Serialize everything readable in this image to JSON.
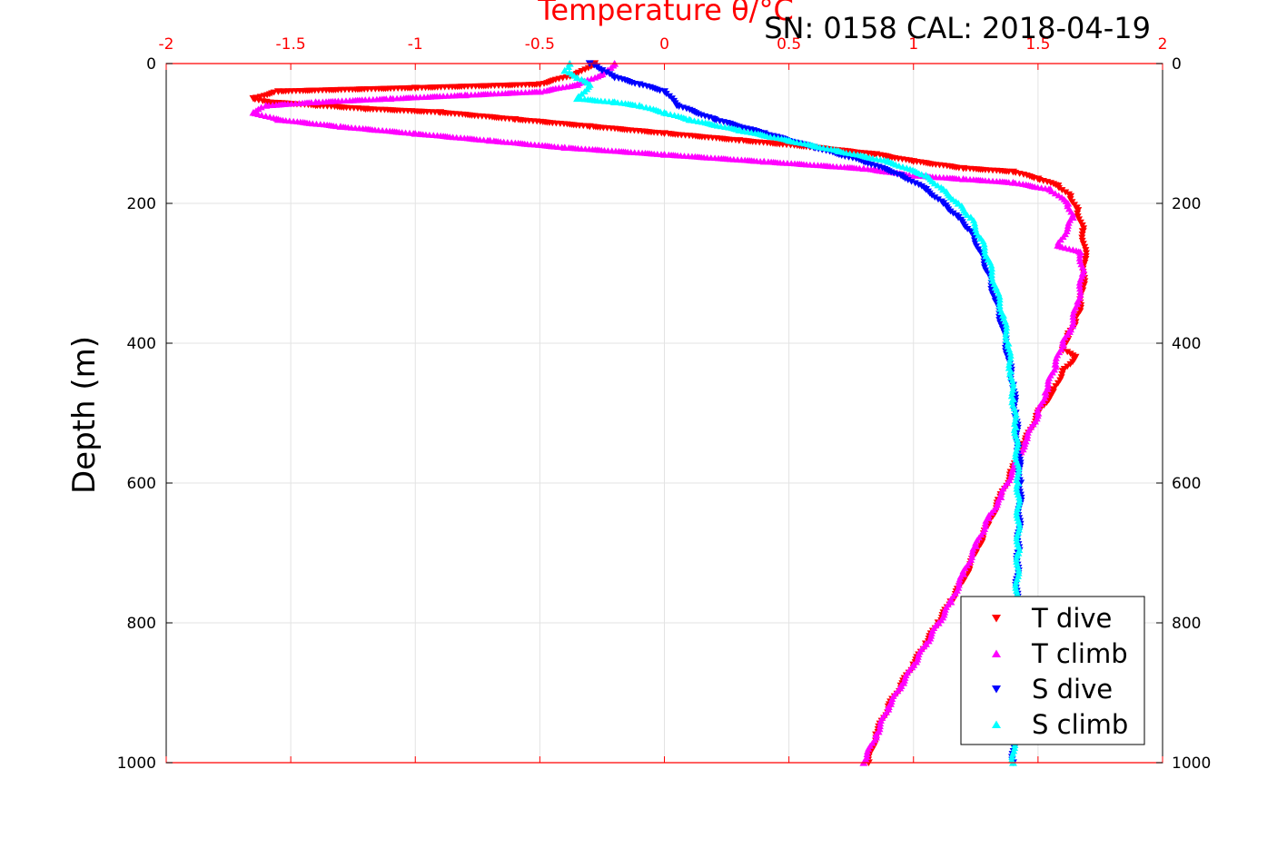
{
  "chart_data": {
    "type": "scatter",
    "title": "Temperature θ/°C",
    "subtitle": "SN: 0158  CAL: 2018-04-19",
    "xlabel": "Temperature θ/°C",
    "ylabel": "Depth (m)",
    "xlim": [
      -2,
      2
    ],
    "ylim": [
      0,
      1000
    ],
    "y_reversed": true,
    "x_ticks": [
      "-2",
      "-1.5",
      "-1",
      "-0.5",
      "0",
      "0.5",
      "1",
      "1.5",
      "2"
    ],
    "y_ticks": [
      "0",
      "200",
      "400",
      "600",
      "800",
      "1000"
    ],
    "grid": true,
    "legend_position": "bottom-right",
    "axis_color": "#ff0000",
    "series": [
      {
        "name": "T dive",
        "color": "#ff0000",
        "marker": "triangle-down",
        "x": [
          -0.28,
          -0.35,
          -0.5,
          -1.0,
          -1.55,
          -1.65,
          -1.6,
          -1.4,
          -1.2,
          -0.9,
          -0.6,
          -0.3,
          0.0,
          0.3,
          0.6,
          0.85,
          1.0,
          1.2,
          1.4,
          1.5,
          1.58,
          1.63,
          1.66,
          1.68,
          1.69,
          1.68,
          1.67,
          1.65,
          1.62,
          1.6,
          1.65,
          1.6,
          1.56,
          1.5,
          1.45,
          1.4,
          1.35,
          1.3,
          1.25,
          1.2,
          1.15,
          1.1,
          1.05,
          1.0,
          0.95,
          0.9,
          0.85,
          0.82
        ],
        "y": [
          0,
          15,
          30,
          35,
          40,
          50,
          55,
          60,
          65,
          70,
          80,
          90,
          100,
          110,
          120,
          130,
          140,
          150,
          155,
          165,
          175,
          190,
          210,
          240,
          280,
          320,
          350,
          370,
          390,
          410,
          420,
          440,
          470,
          500,
          540,
          580,
          620,
          660,
          700,
          740,
          770,
          800,
          830,
          860,
          890,
          920,
          960,
          1000
        ]
      },
      {
        "name": "T climb",
        "color": "#ff00ff",
        "marker": "triangle-up",
        "x": [
          -0.2,
          -0.25,
          -0.35,
          -0.5,
          -0.8,
          -1.1,
          -1.4,
          -1.6,
          -1.65,
          -1.55,
          -1.3,
          -1.0,
          -0.7,
          -0.4,
          0.0,
          0.4,
          0.8,
          1.0,
          1.2,
          1.4,
          1.55,
          1.62,
          1.64,
          1.58,
          1.67,
          1.68,
          1.66,
          1.63,
          1.6,
          1.57,
          1.53,
          1.5,
          1.45,
          1.4,
          1.35,
          1.3,
          1.25,
          1.2,
          1.15,
          1.1,
          1.05,
          1.0,
          0.95,
          0.9,
          0.85,
          0.8
        ],
        "y": [
          0,
          15,
          30,
          40,
          45,
          50,
          55,
          60,
          70,
          80,
          90,
          100,
          110,
          120,
          130,
          140,
          150,
          160,
          165,
          170,
          180,
          200,
          220,
          260,
          270,
          300,
          340,
          380,
          400,
          430,
          470,
          500,
          540,
          580,
          620,
          650,
          690,
          730,
          770,
          800,
          830,
          860,
          890,
          920,
          960,
          1000
        ]
      },
      {
        "name": "S dive",
        "color": "#0000ff",
        "marker": "triangle-down",
        "x": [
          -0.3,
          -0.25,
          -0.2,
          -0.1,
          0.0,
          0.05,
          0.2,
          0.4,
          0.6,
          0.8,
          0.95,
          1.05,
          1.12,
          1.18,
          1.23,
          1.27,
          1.3,
          1.33,
          1.36,
          1.38,
          1.4,
          1.41,
          1.42,
          1.43,
          1.42,
          1.41,
          1.4
        ],
        "y": [
          0,
          10,
          20,
          30,
          40,
          60,
          80,
          100,
          120,
          140,
          160,
          180,
          200,
          220,
          240,
          270,
          300,
          340,
          380,
          420,
          460,
          500,
          550,
          600,
          700,
          800,
          1000
        ]
      },
      {
        "name": "S climb",
        "color": "#00ffff",
        "marker": "triangle-up",
        "x": [
          -0.38,
          -0.4,
          -0.35,
          -0.3,
          -0.35,
          -0.2,
          -0.1,
          0.0,
          0.1,
          0.3,
          0.5,
          0.7,
          0.9,
          1.05,
          1.12,
          1.18,
          1.23,
          1.27,
          1.3,
          1.33,
          1.36,
          1.38,
          1.39,
          1.4,
          1.41,
          1.42,
          1.42,
          1.41,
          1.4
        ],
        "y": [
          0,
          10,
          20,
          30,
          50,
          55,
          60,
          70,
          80,
          95,
          110,
          125,
          140,
          160,
          180,
          200,
          220,
          250,
          280,
          320,
          360,
          400,
          440,
          480,
          520,
          600,
          700,
          800,
          1000
        ]
      }
    ]
  }
}
